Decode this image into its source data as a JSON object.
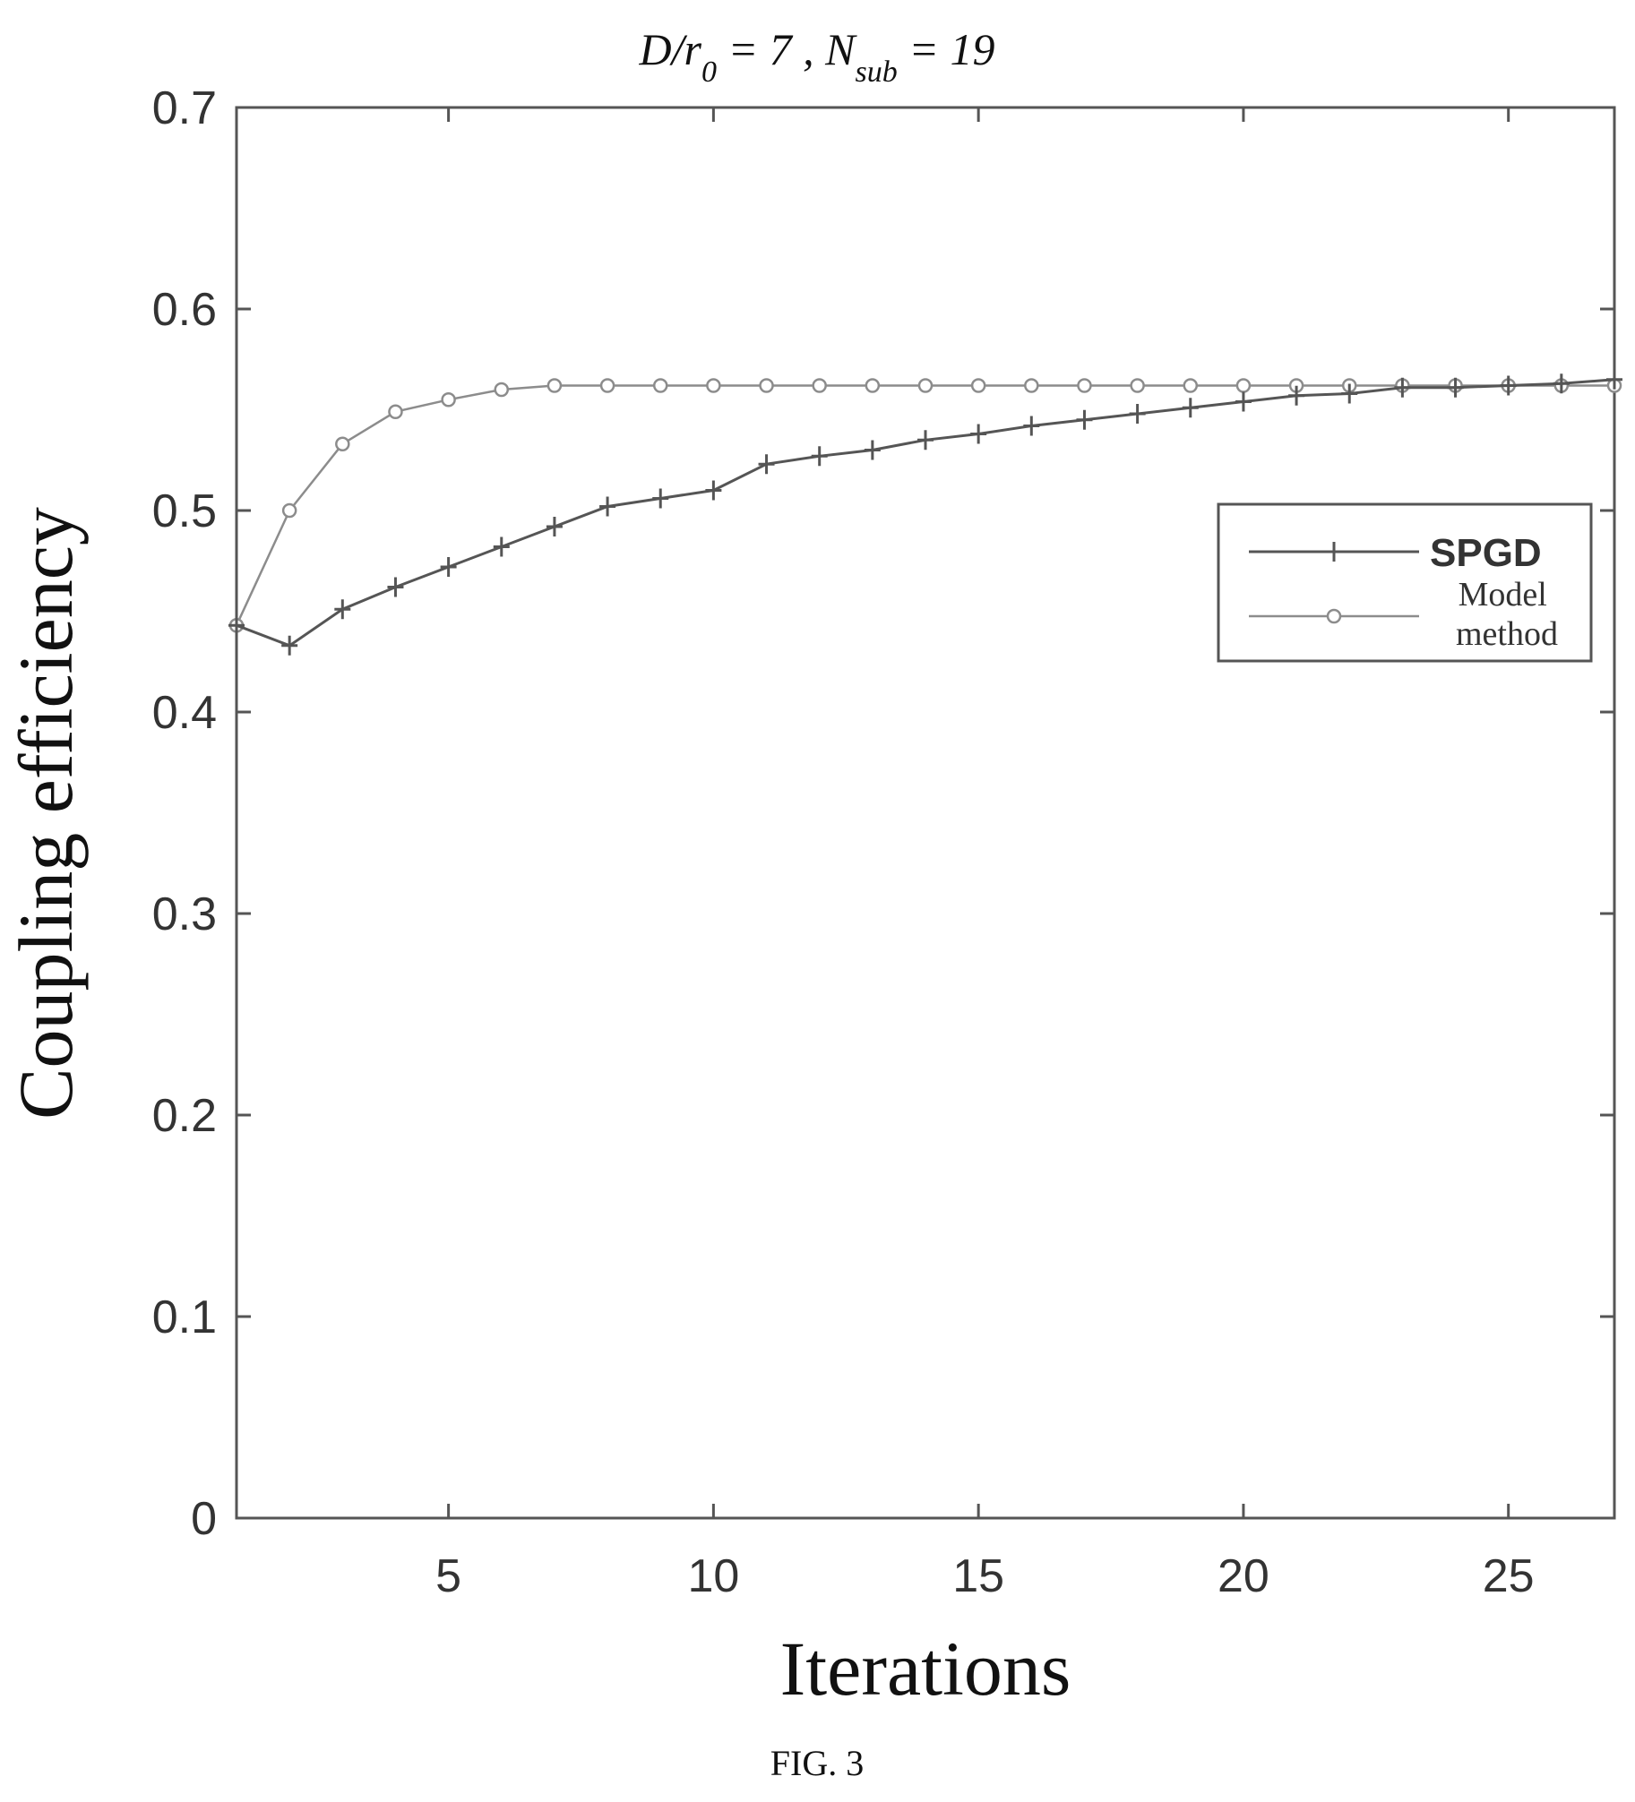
{
  "chart_data": {
    "type": "line",
    "title": "D/r₀ = 7 ,  N_sub = 19",
    "title_parts": {
      "d": "D",
      "slash_r": "/r",
      "r_sub": "0",
      "eq7": " = 7 ,  N",
      "n_sub": "sub",
      "eq19": " = 19"
    },
    "xlabel": "Iterations",
    "ylabel": "Coupling efficiency",
    "xlim": [
      1,
      27
    ],
    "ylim": [
      0,
      0.7
    ],
    "xticks": [
      5,
      10,
      15,
      20,
      25
    ],
    "yticks": [
      0,
      0.1,
      0.2,
      0.3,
      0.4,
      0.5,
      0.6,
      0.7
    ],
    "grid": false,
    "legend_position": "right",
    "x": [
      1,
      2,
      3,
      4,
      5,
      6,
      7,
      8,
      9,
      10,
      11,
      12,
      13,
      14,
      15,
      16,
      17,
      18,
      19,
      20,
      21,
      22,
      23,
      24,
      25,
      26,
      27
    ],
    "series": [
      {
        "name": "SPGD",
        "marker": "plus",
        "color": "#555555",
        "values": [
          0.443,
          0.433,
          0.451,
          0.462,
          0.472,
          0.482,
          0.492,
          0.502,
          0.506,
          0.51,
          0.523,
          0.527,
          0.53,
          0.535,
          0.538,
          0.542,
          0.545,
          0.548,
          0.551,
          0.554,
          0.557,
          0.558,
          0.561,
          0.561,
          0.562,
          0.563,
          0.565
        ]
      },
      {
        "name": "Model method",
        "name_lines": [
          "Model",
          "method"
        ],
        "marker": "circle",
        "color": "#8c8c8c",
        "values": [
          0.443,
          0.5,
          0.533,
          0.549,
          0.555,
          0.56,
          0.562,
          0.562,
          0.562,
          0.562,
          0.562,
          0.562,
          0.562,
          0.562,
          0.562,
          0.562,
          0.562,
          0.562,
          0.562,
          0.562,
          0.562,
          0.562,
          0.562,
          0.562,
          0.562,
          0.562,
          0.562
        ]
      }
    ]
  },
  "caption": "FIG. 3"
}
